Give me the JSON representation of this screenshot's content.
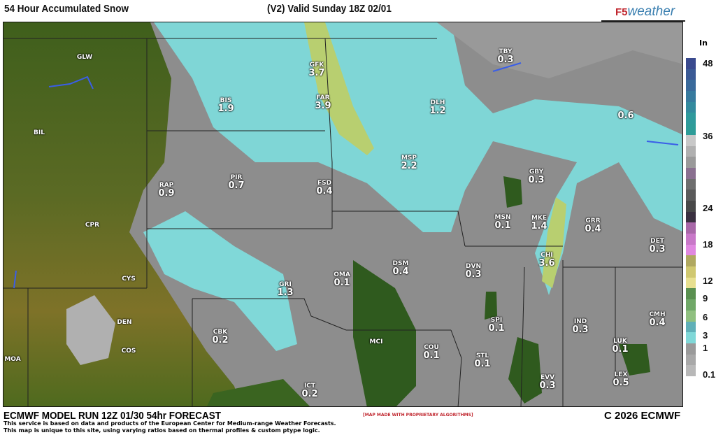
{
  "header": {
    "title": "54 Hour Accumulated Snow",
    "valid": "(V2) Valid Sunday 18Z 02/01",
    "logo_prefix": "F5",
    "logo_text": "weather"
  },
  "legend": {
    "unit": "In",
    "ticks": [
      "48",
      "36",
      "24",
      "18",
      "12",
      "9",
      "6",
      "3",
      "1",
      "0.1"
    ],
    "colors": [
      "#3a4a8e",
      "#3b5a95",
      "#3a6a9b",
      "#377a9e",
      "#338a9e",
      "#2f9a9c",
      "#2e9c98",
      "#c8c8c8",
      "#b0b0b0",
      "#9a9a9a",
      "#8a7090",
      "#6e6e6e",
      "#5a5a5a",
      "#484848",
      "#3a3040",
      "#a868a8",
      "#c878c8",
      "#e088e0",
      "#b0a860",
      "#d0c870",
      "#e8e090",
      "#5a9050",
      "#70a868",
      "#90c080",
      "#60b0b8",
      "#80d8d8",
      "#9a9a9a",
      "#a8a8a8",
      "#b8b8b8"
    ]
  },
  "stations": [
    {
      "code": "GLW",
      "value": ""
    },
    {
      "code": "BIL",
      "value": ""
    },
    {
      "code": "CPR",
      "value": ""
    },
    {
      "code": "CYS",
      "value": ""
    },
    {
      "code": "DEN",
      "value": ""
    },
    {
      "code": "COS",
      "value": ""
    },
    {
      "code": "MOA",
      "value": ""
    },
    {
      "code": "BIS",
      "value": "1.9"
    },
    {
      "code": "RAP",
      "value": "0.9"
    },
    {
      "code": "PIR",
      "value": "0.7"
    },
    {
      "code": "CBK",
      "value": "0.2"
    },
    {
      "code": "GFK",
      "value": "3.7"
    },
    {
      "code": "FAR",
      "value": "3.9"
    },
    {
      "code": "DLH",
      "value": "1.2"
    },
    {
      "code": "TBY",
      "value": "0.3"
    },
    {
      "code": "MSP",
      "value": "2.2"
    },
    {
      "code": "FSD",
      "value": "0.4"
    },
    {
      "code": "GBY",
      "value": "0.3"
    },
    {
      "code": "MSN",
      "value": "0.1"
    },
    {
      "code": "MKE",
      "value": "1.4"
    },
    {
      "code": "GRR",
      "value": "0.4"
    },
    {
      "code": "DET",
      "value": "0.3"
    },
    {
      "code": "CHI",
      "value": "3.6"
    },
    {
      "code": "DSM",
      "value": "0.4"
    },
    {
      "code": "DVN",
      "value": "0.3"
    },
    {
      "code": "OMA",
      "value": "0.1"
    },
    {
      "code": "GRI",
      "value": "1.3"
    },
    {
      "code": "IND",
      "value": "0.3"
    },
    {
      "code": "CMH",
      "value": "0.4"
    },
    {
      "code": "SPI",
      "value": "0.1"
    },
    {
      "code": "LUK",
      "value": "0.1"
    },
    {
      "code": "COU",
      "value": "0.1"
    },
    {
      "code": "STL",
      "value": "0.1"
    },
    {
      "code": "MCI",
      "value": ""
    },
    {
      "code": "EVV",
      "value": "0.3"
    },
    {
      "code": "LEX",
      "value": "0.5"
    },
    {
      "code": "ICT",
      "value": "0.2"
    },
    {
      "code": "",
      "value": "0.6"
    }
  ],
  "footer": {
    "run": "ECMWF MODEL RUN 12Z 01/30 54hr FORECAST",
    "made": "[MAP MADE WITH PROPRIETARY ALGORITHMS]",
    "line1": "This service is based on data and products of the European Center for Medium-range Weather Forecasts.",
    "line2": "This map is unique to this site, using varying ratios based on thermal profiles & custom ptype logic.",
    "copyright": "C 2026 ECMWF"
  }
}
